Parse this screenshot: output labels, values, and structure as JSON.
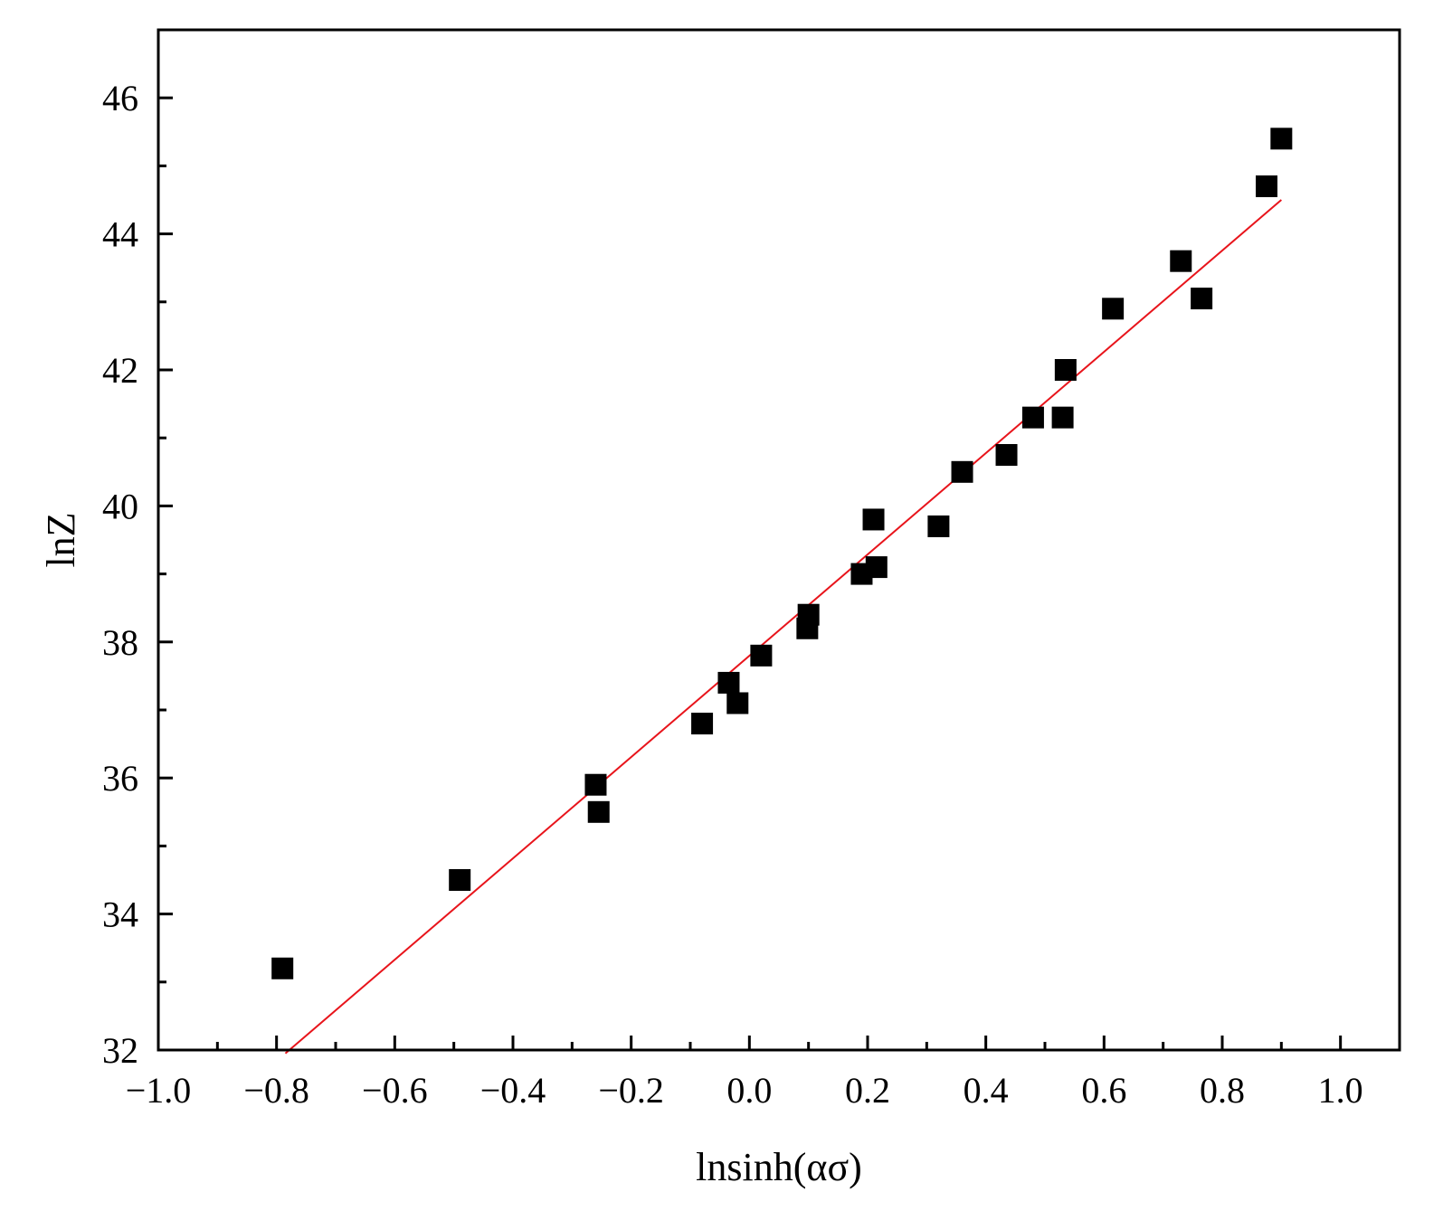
{
  "chart_data": {
    "type": "scatter",
    "title": "",
    "xlabel": "lnsinh(ασ)",
    "ylabel": "lnZ",
    "xlim": [
      -1.0,
      1.1
    ],
    "ylim": [
      32,
      47
    ],
    "x_ticks": [
      -1.0,
      -0.8,
      -0.6,
      -0.4,
      -0.2,
      0.0,
      0.2,
      0.4,
      0.6,
      0.8,
      1.0
    ],
    "x_tick_labels": [
      "−1.0",
      "−0.8",
      "−0.6",
      "−0.4",
      "−0.2",
      "0.0",
      "0.2",
      "0.4",
      "0.6",
      "0.8",
      "1.0"
    ],
    "y_ticks": [
      32,
      34,
      36,
      38,
      40,
      42,
      44,
      46
    ],
    "y_tick_labels": [
      "32",
      "34",
      "36",
      "38",
      "40",
      "42",
      "44",
      "46"
    ],
    "grid": false,
    "legend": "none",
    "colors": {
      "points": "#000000",
      "fit_line": "#e8141b"
    },
    "series": [
      {
        "kind": "points",
        "x": [
          -0.79,
          -0.49,
          -0.26,
          -0.255,
          -0.08,
          -0.035,
          -0.02,
          0.02,
          0.098,
          0.1,
          0.19,
          0.21,
          0.215,
          0.32,
          0.36,
          0.435,
          0.48,
          0.53,
          0.535,
          0.615,
          0.73,
          0.765,
          0.875,
          0.9
        ],
        "y": [
          33.2,
          34.5,
          35.9,
          35.5,
          36.8,
          37.4,
          37.1,
          37.8,
          38.2,
          38.4,
          39.0,
          39.8,
          39.1,
          39.7,
          40.5,
          40.75,
          41.3,
          41.3,
          42.0,
          42.9,
          43.6,
          43.05,
          44.7,
          45.4
        ]
      },
      {
        "kind": "fit_line",
        "x": [
          -0.785,
          0.9
        ],
        "y": [
          31.95,
          44.5
        ]
      }
    ]
  }
}
